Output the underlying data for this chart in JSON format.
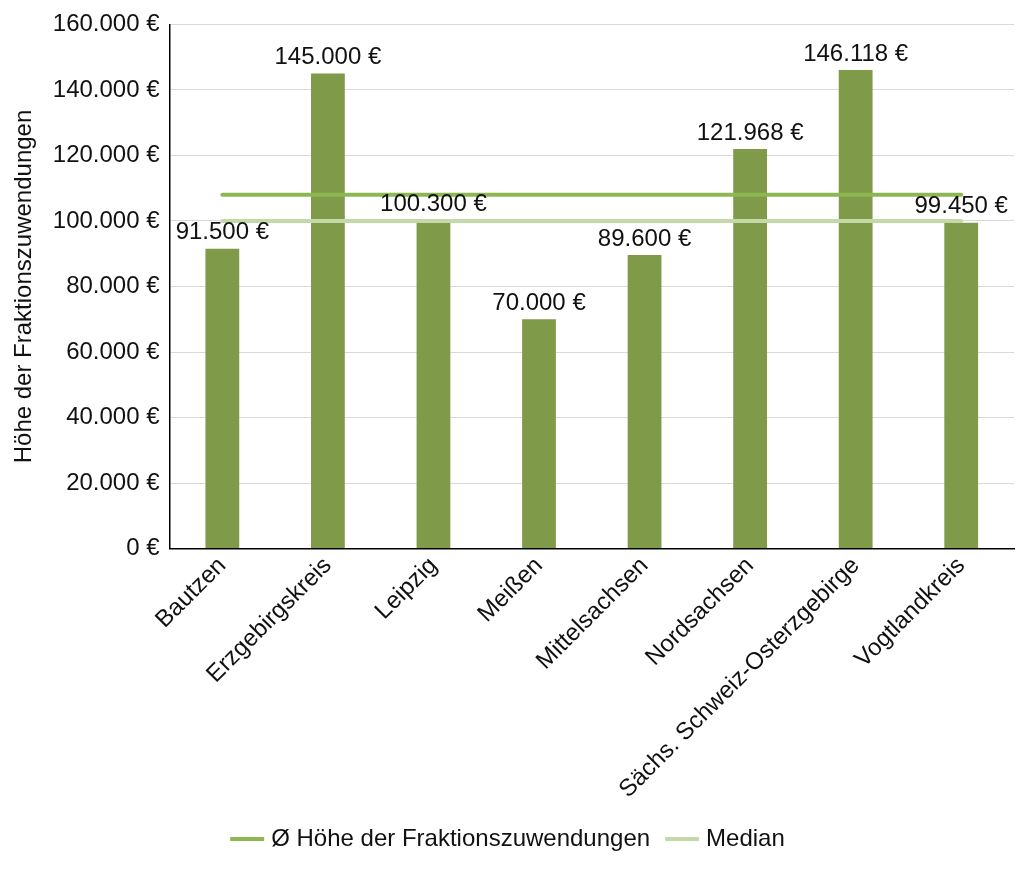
{
  "chart_data": {
    "type": "bar",
    "ylabel": "Höhe der Fraktionszuwendungen",
    "categories": [
      "Bautzen",
      "Erzgebirgskreis",
      "Leipzig",
      "Meißen",
      "Mittelsachsen",
      "Nordsachsen",
      "Sächs. Schweiz-Osterzgebirge",
      "Vogtlandkreis"
    ],
    "series": [
      {
        "color": "#7f9a48",
        "values": [
          91500,
          145000,
          100300,
          70000,
          89600,
          121968,
          146118,
          99450
        ],
        "value_labels": [
          "91.500 €",
          "145.000 €",
          "100.300 €",
          "70.000 €",
          "89.600 €",
          "121.968 €",
          "146.118 €",
          "99.450 €"
        ]
      },
      {
        "type": "line",
        "name": "Ø Höhe der Fraktionszuwendungen",
        "color": "#8db750",
        "values": [
          108000,
          108000,
          108000,
          108000,
          108000,
          108000,
          108000,
          108000
        ]
      },
      {
        "type": "line",
        "name": "Median",
        "color": "#c5d9a8",
        "values": [
          100000,
          100000,
          100000,
          100000,
          100000,
          100000,
          100000,
          100000
        ]
      }
    ],
    "ylim": [
      0,
      160000
    ],
    "yticks": [
      {
        "value": 0,
        "label": "0 €"
      },
      {
        "value": 20000,
        "label": "20.000 €"
      },
      {
        "value": 40000,
        "label": "40.000 €"
      },
      {
        "value": 60000,
        "label": "60.000 €"
      },
      {
        "value": 80000,
        "label": "80.000 €"
      },
      {
        "value": 100000,
        "label": "100.000 €"
      },
      {
        "value": 120000,
        "label": "120.000 €"
      },
      {
        "value": 140000,
        "label": "140.000 €"
      },
      {
        "value": 160000,
        "label": "160.000 €"
      }
    ],
    "grid": "y",
    "legend": "bottom",
    "marker": "none",
    "line_style": "solid"
  }
}
